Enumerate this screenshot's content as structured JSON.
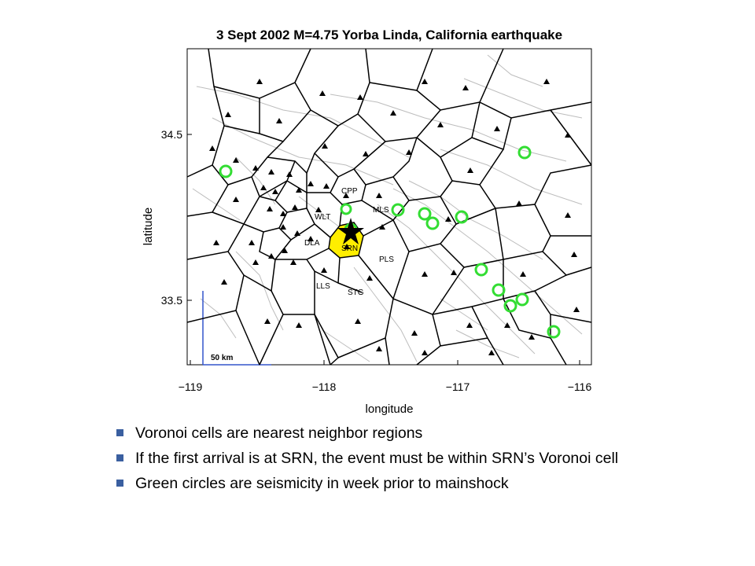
{
  "figure": {
    "title": "3 Sept 2002 M=4.75 Yorba Linda, California earthquake",
    "xlabel": "longitude",
    "ylabel": "latitude",
    "xticks": [
      "−119",
      "−118",
      "−117",
      "−116"
    ],
    "yticks": [
      "34.5",
      "33.5"
    ],
    "scalebar_label": "50 km",
    "station_labels": [
      "CPP",
      "MLS",
      "WLT",
      "DLA",
      "SRN",
      "PLS",
      "LLS",
      "STG"
    ],
    "colors": {
      "srn_cell": "#ffee00",
      "seismicity_circles": "#33dd33",
      "scale_bar": "#3355cc",
      "cell_edges": "#000000",
      "faults": "#bbbbbb"
    }
  },
  "bullets": [
    "Voronoi cells are nearest neighbor regions",
    "If the first arrival is at SRN, the event must be within SRN’s Voronoi cell",
    "Green circles are seismicity in week prior to mainshock"
  ]
}
